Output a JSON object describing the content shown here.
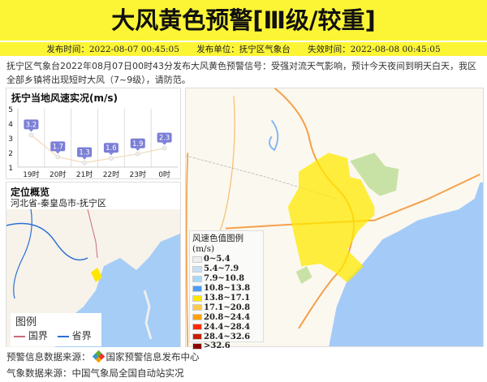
{
  "header": {
    "title": "大风黄色预警[Ⅲ级/较重]",
    "publish_time": "发布时间：2022-08-07 00:45:05",
    "publisher": "发布单位：抚宁区气象台",
    "expire_time": "失效时间：2022-08-08 00:45:05",
    "color": "#fcf536"
  },
  "description": "抚宁区气象台2022年08月07日00时43分发布大风黄色预警信号：受强对流天气影响，预计今天夜间到明天白天，我区全部乡镇将出现短时大风（7~9级），请防范。",
  "chart_data": {
    "type": "line",
    "title": "抚宁当地风速实况(m/s)",
    "categories": [
      "19时",
      "20时",
      "21时",
      "22时",
      "23时",
      "0时"
    ],
    "values": [
      3.2,
      1.7,
      1.3,
      1.6,
      1.9,
      2.3
    ],
    "ylim": [
      1,
      5
    ],
    "yticks": [
      "1",
      "2",
      "3",
      "4",
      "5"
    ],
    "labels": [
      "3.2",
      "1.7",
      "1.3",
      "1.6",
      "1.9",
      "2.3"
    ],
    "line_color": "#f3d9b8",
    "label_color": "#7b7fd6"
  },
  "location": {
    "title": "定位概览",
    "path": "河北省-秦皇岛市-抚宁区",
    "legend_title": "图例",
    "legend_items": [
      {
        "label": "国界",
        "color": "#c96b7a"
      },
      {
        "label": "省界",
        "color": "#2a6fd6"
      }
    ]
  },
  "wind_legend": {
    "title": "风速色值图例 (m/s)",
    "items": [
      {
        "label": "0~5.4",
        "color": "#eeeeee"
      },
      {
        "label": "5.4~7.9",
        "color": "#c6e0f5"
      },
      {
        "label": "7.9~10.8",
        "color": "#a8d8f8"
      },
      {
        "label": "10.8~13.8",
        "color": "#4a9cf5"
      },
      {
        "label": "13.8~17.1",
        "color": "#ffe600"
      },
      {
        "label": "17.1~20.8",
        "color": "#ffc94d"
      },
      {
        "label": "20.8~24.4",
        "color": "#ffa200"
      },
      {
        "label": "24.4~28.4",
        "color": "#ff2a00"
      },
      {
        "label": "28.4~32.6",
        "color": "#c81e00"
      },
      {
        "label": ">32.6",
        "color": "#8b0000"
      }
    ]
  },
  "footer": {
    "warning_source": "预警信息数据来源：",
    "warning_source_name": "国家预警信息发布中心",
    "weather_source": "气象数据来源：中国气象局全国自动站实况"
  }
}
